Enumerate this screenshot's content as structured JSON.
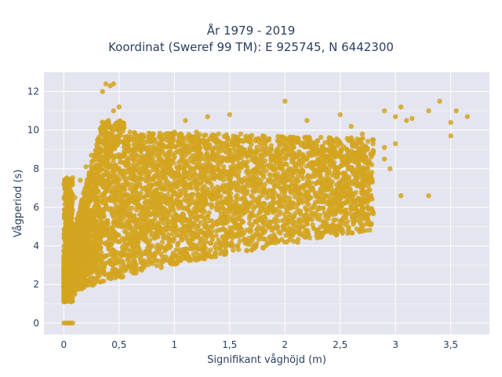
{
  "chart_data": {
    "type": "scatter",
    "title_lines": [
      "År 1979 - 2019",
      "Koordinat (Sweref 99 TM): E 925745, N 6442300"
    ],
    "xlabel": "Signifikant våghöjd (m)",
    "ylabel": "Vågperiod (s)",
    "xlim": [
      -0.18,
      3.85
    ],
    "ylim": [
      -0.6,
      13.0
    ],
    "x_ticks": [
      0,
      0.5,
      1,
      1.5,
      2,
      2.5,
      3,
      3.5
    ],
    "x_tick_labels": [
      "0",
      "0,5",
      "1",
      "1,5",
      "2",
      "2,5",
      "3",
      "3,5"
    ],
    "y_ticks": [
      0,
      2,
      4,
      6,
      8,
      10,
      12
    ],
    "y_tick_labels": [
      "0",
      "2",
      "4",
      "6",
      "8",
      "10",
      "12"
    ],
    "grid": true,
    "marker_color": "#D4A520",
    "plot_background": "#E5E5EF",
    "description_points": "dense cloud of hourly observations; x = significant wave height, y = wave period",
    "series": [
      {
        "values_xy": [
          [
            0.0,
            0.0
          ],
          [
            0.02,
            0.0
          ],
          [
            0.04,
            0.0
          ],
          [
            0.06,
            0.0
          ],
          [
            0.08,
            0.0
          ],
          [
            0.0,
            1.1
          ],
          [
            0.05,
            1.2
          ],
          [
            0.1,
            1.5
          ],
          [
            0.15,
            1.8
          ],
          [
            0.2,
            2.0
          ],
          [
            0.3,
            2.3
          ],
          [
            0.4,
            2.5
          ],
          [
            0.5,
            2.7
          ],
          [
            0.6,
            2.9
          ],
          [
            0.8,
            3.2
          ],
          [
            1.0,
            3.5
          ],
          [
            1.2,
            3.9
          ],
          [
            1.4,
            4.3
          ],
          [
            1.6,
            4.6
          ],
          [
            1.8,
            4.9
          ],
          [
            2.0,
            5.1
          ],
          [
            2.2,
            5.4
          ],
          [
            2.4,
            5.6
          ],
          [
            2.6,
            5.9
          ],
          [
            2.75,
            6.0
          ],
          [
            0.05,
            5.2
          ],
          [
            0.1,
            6.5
          ],
          [
            0.15,
            7.4
          ],
          [
            0.2,
            8.1
          ],
          [
            0.25,
            8.7
          ],
          [
            0.3,
            9.2
          ],
          [
            0.35,
            9.8
          ],
          [
            0.4,
            10.3
          ],
          [
            0.45,
            11.0
          ],
          [
            0.5,
            11.2
          ],
          [
            0.35,
            12.0
          ],
          [
            0.38,
            12.4
          ],
          [
            0.42,
            12.3
          ],
          [
            0.45,
            12.4
          ],
          [
            0.6,
            9.9
          ],
          [
            0.8,
            9.8
          ],
          [
            1.0,
            9.9
          ],
          [
            1.2,
            9.9
          ],
          [
            1.4,
            9.8
          ],
          [
            1.6,
            9.8
          ],
          [
            1.8,
            9.7
          ],
          [
            2.0,
            9.6
          ],
          [
            2.2,
            9.6
          ],
          [
            2.4,
            9.6
          ],
          [
            2.6,
            9.6
          ],
          [
            2.8,
            9.5
          ],
          [
            0.5,
            6.0
          ],
          [
            0.7,
            6.5
          ],
          [
            0.9,
            7.0
          ],
          [
            1.1,
            7.2
          ],
          [
            1.3,
            7.4
          ],
          [
            1.5,
            7.6
          ],
          [
            1.7,
            7.8
          ],
          [
            1.9,
            8.0
          ],
          [
            2.1,
            8.2
          ],
          [
            2.3,
            8.4
          ],
          [
            2.5,
            8.6
          ],
          [
            2.7,
            8.8
          ],
          [
            0.3,
            4.5
          ],
          [
            0.6,
            5.0
          ],
          [
            0.9,
            5.5
          ],
          [
            1.2,
            6.0
          ],
          [
            1.5,
            6.4
          ],
          [
            1.8,
            6.8
          ],
          [
            2.1,
            7.0
          ],
          [
            2.4,
            7.2
          ],
          [
            1.1,
            10.5
          ],
          [
            1.3,
            10.7
          ],
          [
            1.5,
            10.8
          ],
          [
            2.0,
            11.5
          ],
          [
            2.2,
            10.5
          ],
          [
            2.5,
            10.8
          ],
          [
            2.6,
            10.2
          ],
          [
            2.7,
            9.8
          ],
          [
            2.9,
            11.0
          ],
          [
            3.0,
            10.7
          ],
          [
            3.05,
            11.2
          ],
          [
            3.1,
            10.5
          ],
          [
            3.15,
            10.6
          ],
          [
            3.3,
            11.0
          ],
          [
            3.4,
            11.5
          ],
          [
            3.5,
            10.4
          ],
          [
            3.55,
            11.0
          ],
          [
            3.65,
            10.7
          ],
          [
            3.5,
            9.7
          ],
          [
            3.3,
            6.6
          ],
          [
            3.05,
            6.6
          ],
          [
            2.9,
            8.5
          ],
          [
            2.8,
            8.9
          ],
          [
            2.7,
            6.1
          ],
          [
            2.9,
            9.1
          ],
          [
            2.95,
            8.0
          ],
          [
            3.0,
            9.3
          ]
        ]
      }
    ]
  }
}
